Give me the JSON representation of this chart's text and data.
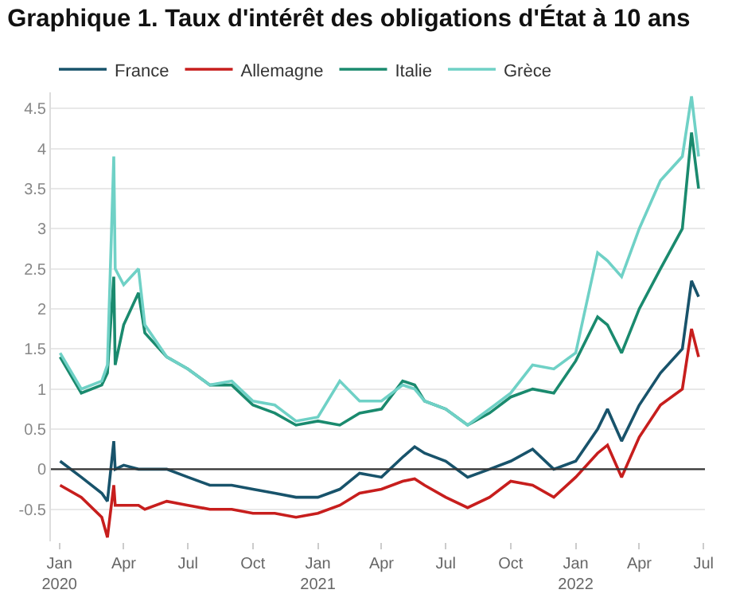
{
  "chart_data": {
    "type": "line",
    "title": "Graphique 1. Taux d'intérêt des obligations d'État à 10 ans",
    "x": [
      "2020-01-02",
      "2020-02-01",
      "2020-03-01",
      "2020-03-09",
      "2020-03-18",
      "2020-03-20",
      "2020-04-01",
      "2020-04-22",
      "2020-05-01",
      "2020-06-01",
      "2020-07-01",
      "2020-08-01",
      "2020-09-01",
      "2020-10-01",
      "2020-11-01",
      "2020-12-01",
      "2021-01-01",
      "2021-02-01",
      "2021-03-01",
      "2021-04-01",
      "2021-05-01",
      "2021-05-18",
      "2021-06-01",
      "2021-07-01",
      "2021-08-01",
      "2021-09-01",
      "2021-10-01",
      "2021-11-01",
      "2021-12-01",
      "2022-01-01",
      "2022-02-01",
      "2022-02-15",
      "2022-03-07",
      "2022-04-01",
      "2022-05-01",
      "2022-06-01",
      "2022-06-14",
      "2022-06-24"
    ],
    "series": [
      {
        "name": "France",
        "color": "#18536b",
        "values": [
          0.1,
          -0.1,
          -0.3,
          -0.4,
          0.35,
          0.0,
          0.05,
          0.0,
          0.0,
          0.0,
          -0.1,
          -0.2,
          -0.2,
          -0.25,
          -0.3,
          -0.35,
          -0.35,
          -0.25,
          -0.05,
          -0.1,
          0.15,
          0.28,
          0.2,
          0.1,
          -0.1,
          0.0,
          0.1,
          0.25,
          0.0,
          0.1,
          0.5,
          0.75,
          0.35,
          0.8,
          1.2,
          1.5,
          2.35,
          2.15
        ]
      },
      {
        "name": "Allemagne",
        "color": "#c71e1d",
        "values": [
          -0.2,
          -0.35,
          -0.6,
          -0.85,
          -0.2,
          -0.45,
          -0.45,
          -0.45,
          -0.5,
          -0.4,
          -0.45,
          -0.5,
          -0.5,
          -0.55,
          -0.55,
          -0.6,
          -0.55,
          -0.45,
          -0.3,
          -0.25,
          -0.15,
          -0.12,
          -0.2,
          -0.35,
          -0.48,
          -0.35,
          -0.15,
          -0.2,
          -0.35,
          -0.1,
          0.2,
          0.3,
          -0.1,
          0.4,
          0.8,
          1.0,
          1.75,
          1.4
        ]
      },
      {
        "name": "Italie",
        "color": "#1a8a6e",
        "values": [
          1.4,
          0.95,
          1.05,
          1.2,
          2.4,
          1.3,
          1.8,
          2.2,
          1.7,
          1.4,
          1.25,
          1.05,
          1.05,
          0.8,
          0.7,
          0.55,
          0.6,
          0.55,
          0.7,
          0.75,
          1.1,
          1.05,
          0.85,
          0.75,
          0.55,
          0.7,
          0.9,
          1.0,
          0.95,
          1.35,
          1.9,
          1.8,
          1.45,
          2.0,
          2.5,
          3.0,
          4.2,
          3.5
        ]
      },
      {
        "name": "Grèce",
        "color": "#6fd1c6",
        "values": [
          1.45,
          1.0,
          1.1,
          1.3,
          3.9,
          2.5,
          2.3,
          2.5,
          1.8,
          1.4,
          1.25,
          1.05,
          1.1,
          0.85,
          0.8,
          0.6,
          0.65,
          1.1,
          0.85,
          0.85,
          1.05,
          1.0,
          0.85,
          0.75,
          0.55,
          0.75,
          0.95,
          1.3,
          1.25,
          1.45,
          2.7,
          2.6,
          2.4,
          3.0,
          3.6,
          3.9,
          4.65,
          3.9
        ]
      }
    ],
    "xlim": [
      "2019-12-20",
      "2022-07-03"
    ],
    "xticks": [
      {
        "value": "2020-01-01",
        "label": "Jan\n2020"
      },
      {
        "value": "2020-04-01",
        "label": "Apr"
      },
      {
        "value": "2020-07-01",
        "label": "Jul"
      },
      {
        "value": "2020-10-01",
        "label": "Oct"
      },
      {
        "value": "2021-01-01",
        "label": "Jan\n2021"
      },
      {
        "value": "2021-04-01",
        "label": "Apr"
      },
      {
        "value": "2021-07-01",
        "label": "Jul"
      },
      {
        "value": "2021-10-01",
        "label": "Oct"
      },
      {
        "value": "2022-01-01",
        "label": "Jan\n2022"
      },
      {
        "value": "2022-04-01",
        "label": "Apr"
      },
      {
        "value": "2022-07-01",
        "label": "Jul"
      }
    ],
    "ylim": [
      -0.9,
      4.7
    ],
    "yticks": [
      -0.5,
      0,
      0.5,
      1,
      1.5,
      2,
      2.5,
      3,
      3.5,
      4,
      4.5
    ],
    "ref_lines": [
      {
        "axis": "y",
        "value": 0,
        "color": "#333333"
      }
    ],
    "grid": "y",
    "legend": "top left",
    "marker": "none",
    "line_style": "solid"
  }
}
